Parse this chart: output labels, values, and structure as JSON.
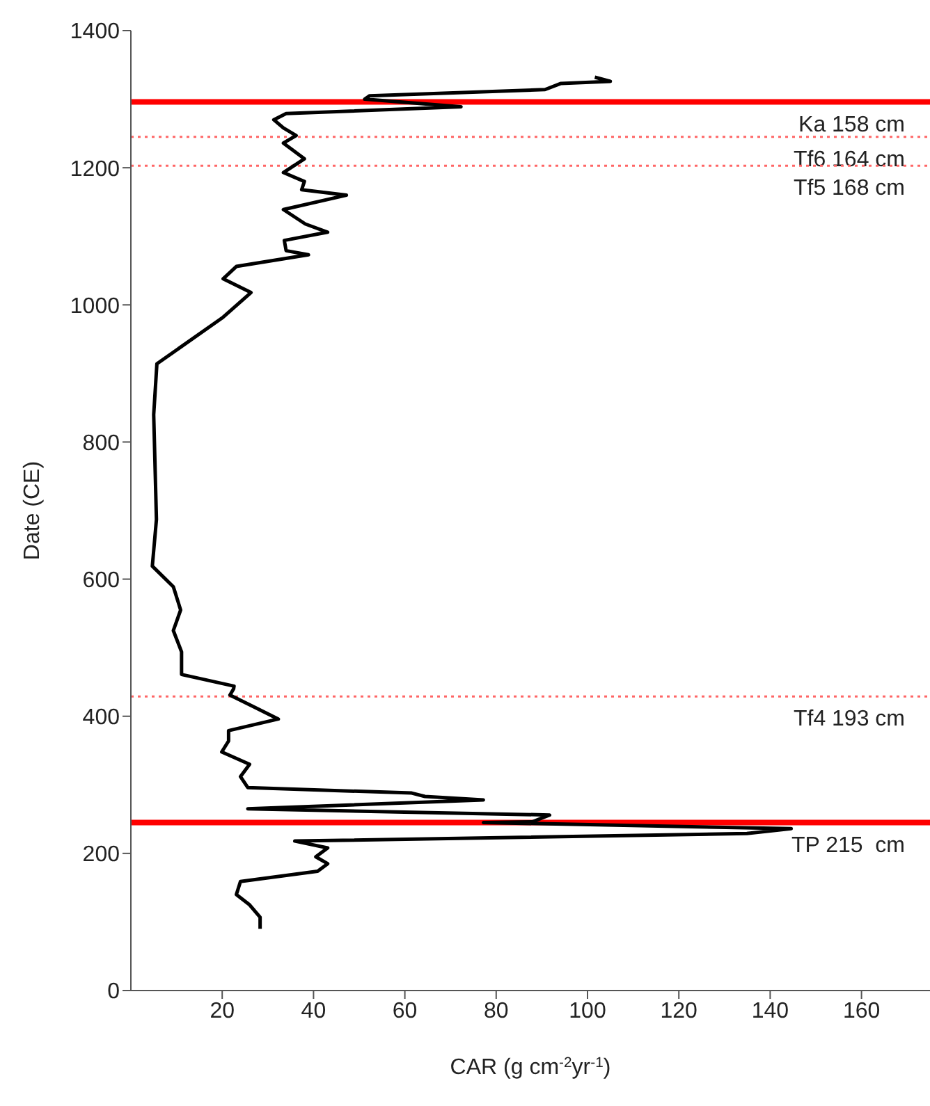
{
  "chart_data": {
    "type": "line",
    "xlabel": "CAR (g cm$^{-2}$yr$^{-1}$)",
    "ylabel": "Date (CE)",
    "xlim": [
      0,
      175
    ],
    "xticks": [
      20,
      40,
      60,
      80,
      100,
      120,
      140,
      160
    ],
    "ylim": [
      0,
      1400
    ],
    "yticks": [
      0,
      200,
      400,
      600,
      800,
      1000,
      1200,
      1400
    ],
    "grid": false,
    "legend": false,
    "marker": "none",
    "line_style": "solid",
    "series": [
      {
        "color": "#000000",
        "x": [
          28.3,
          28.3,
          26,
          23.1,
          24,
          40.9,
          43.1,
          40.5,
          43.1,
          35.9,
          134.9,
          144.6,
          77.2,
          87.9,
          91.7,
          25.6,
          77.2,
          64.4,
          61.5,
          25.6,
          24,
          26,
          19.9,
          21.4,
          21.4,
          32.3,
          21.7,
          22.5,
          22.6,
          11.1,
          11.1,
          9.3,
          10.9,
          9.3,
          4.7,
          5.6,
          5,
          5.7,
          20,
          26.3,
          20.2,
          23.1,
          38.9,
          34,
          33.6,
          43.1,
          38.2,
          33.4,
          47.2,
          37.4,
          38,
          33.4,
          38,
          33.4,
          36.2,
          33.4,
          31.3,
          34,
          72.3,
          51.2,
          52.3,
          90.7,
          94.2,
          105,
          101.6
        ],
        "values": [
          90,
          107,
          125,
          140,
          159,
          174,
          185,
          195,
          208,
          218,
          229,
          236,
          245,
          246,
          256,
          265,
          278,
          283,
          288,
          296,
          312,
          330,
          348,
          364,
          379,
          396,
          431,
          440,
          444,
          461,
          494,
          525,
          555,
          589,
          619,
          687,
          840,
          914,
          981,
          1018,
          1038,
          1056,
          1073,
          1079,
          1094,
          1106,
          1118,
          1139,
          1160,
          1168,
          1180,
          1193,
          1213,
          1236,
          1247,
          1258,
          1270,
          1279,
          1289,
          1300,
          1305,
          1314,
          1323,
          1326,
          1332
        ]
      }
    ],
    "ref_lines": [
      {
        "axis": "y",
        "value": 1296,
        "label": "Ka 158 cm",
        "color": "#ff0000",
        "line_style": "solid"
      },
      {
        "axis": "y",
        "value": 1245,
        "label": "Tf6 164 cm",
        "color": "#ff6666",
        "line_style": "dotted"
      },
      {
        "axis": "y",
        "value": 1203,
        "label": "Tf5 168 cm",
        "color": "#ff6666",
        "line_style": "dotted"
      },
      {
        "axis": "y",
        "value": 429,
        "label": "Tf4 193 cm",
        "color": "#ff6666",
        "line_style": "dotted"
      },
      {
        "axis": "y",
        "value": 245,
        "label": "TP 215  cm",
        "color": "#ff0000",
        "line_style": "solid"
      }
    ]
  }
}
